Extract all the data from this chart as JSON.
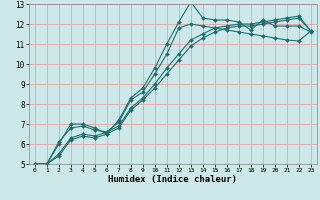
{
  "title": "",
  "xlabel": "Humidex (Indice chaleur)",
  "ylabel": "",
  "xlim": [
    -0.5,
    23.5
  ],
  "ylim": [
    5,
    13
  ],
  "xticks": [
    0,
    1,
    2,
    3,
    4,
    5,
    6,
    7,
    8,
    9,
    10,
    11,
    12,
    13,
    14,
    15,
    16,
    17,
    18,
    19,
    20,
    21,
    22,
    23
  ],
  "yticks": [
    5,
    6,
    7,
    8,
    9,
    10,
    11,
    12,
    13
  ],
  "bg_color": "#cce8e8",
  "grid_color": "#e8aaaa",
  "line_color": "#1a7070",
  "lines": [
    {
      "x": [
        0,
        1,
        2,
        3,
        4,
        5,
        6,
        7,
        8,
        9,
        10,
        11,
        12,
        13,
        14,
        15,
        16,
        17,
        18,
        19,
        20,
        21,
        22,
        23
      ],
      "y": [
        5,
        5,
        6,
        7,
        7,
        6.8,
        6.5,
        7.2,
        8.3,
        8.8,
        9.8,
        11.0,
        12.1,
        13.1,
        12.3,
        12.2,
        12.2,
        12.1,
        11.7,
        12.2,
        11.9,
        11.9,
        11.9,
        11.6
      ]
    },
    {
      "x": [
        0,
        1,
        2,
        3,
        4,
        5,
        6,
        7,
        8,
        9,
        10,
        11,
        12,
        13,
        14,
        15,
        16,
        17,
        18,
        19,
        20,
        21,
        22,
        23
      ],
      "y": [
        5,
        5,
        6.1,
        6.8,
        6.9,
        6.7,
        6.6,
        7.1,
        8.2,
        8.6,
        9.5,
        10.5,
        11.8,
        12.0,
        11.9,
        11.8,
        11.7,
        11.6,
        11.5,
        11.4,
        11.3,
        11.2,
        11.15,
        11.65
      ]
    },
    {
      "x": [
        0,
        1,
        2,
        3,
        4,
        5,
        6,
        7,
        8,
        9,
        10,
        11,
        12,
        13,
        14,
        15,
        16,
        17,
        18,
        19,
        20,
        21,
        22,
        23
      ],
      "y": [
        5,
        5,
        5.5,
        6.3,
        6.5,
        6.4,
        6.6,
        6.9,
        7.8,
        8.3,
        9.0,
        9.8,
        10.5,
        11.2,
        11.5,
        11.8,
        11.9,
        12.0,
        12.0,
        12.1,
        12.2,
        12.3,
        12.4,
        11.65
      ]
    },
    {
      "x": [
        0,
        1,
        2,
        3,
        4,
        5,
        6,
        7,
        8,
        9,
        10,
        11,
        12,
        13,
        14,
        15,
        16,
        17,
        18,
        19,
        20,
        21,
        22,
        23
      ],
      "y": [
        5,
        5,
        5.4,
        6.2,
        6.4,
        6.3,
        6.5,
        6.8,
        7.7,
        8.2,
        8.8,
        9.5,
        10.2,
        10.9,
        11.3,
        11.6,
        11.8,
        11.9,
        11.9,
        12.0,
        12.1,
        12.2,
        12.3,
        11.65
      ]
    }
  ]
}
